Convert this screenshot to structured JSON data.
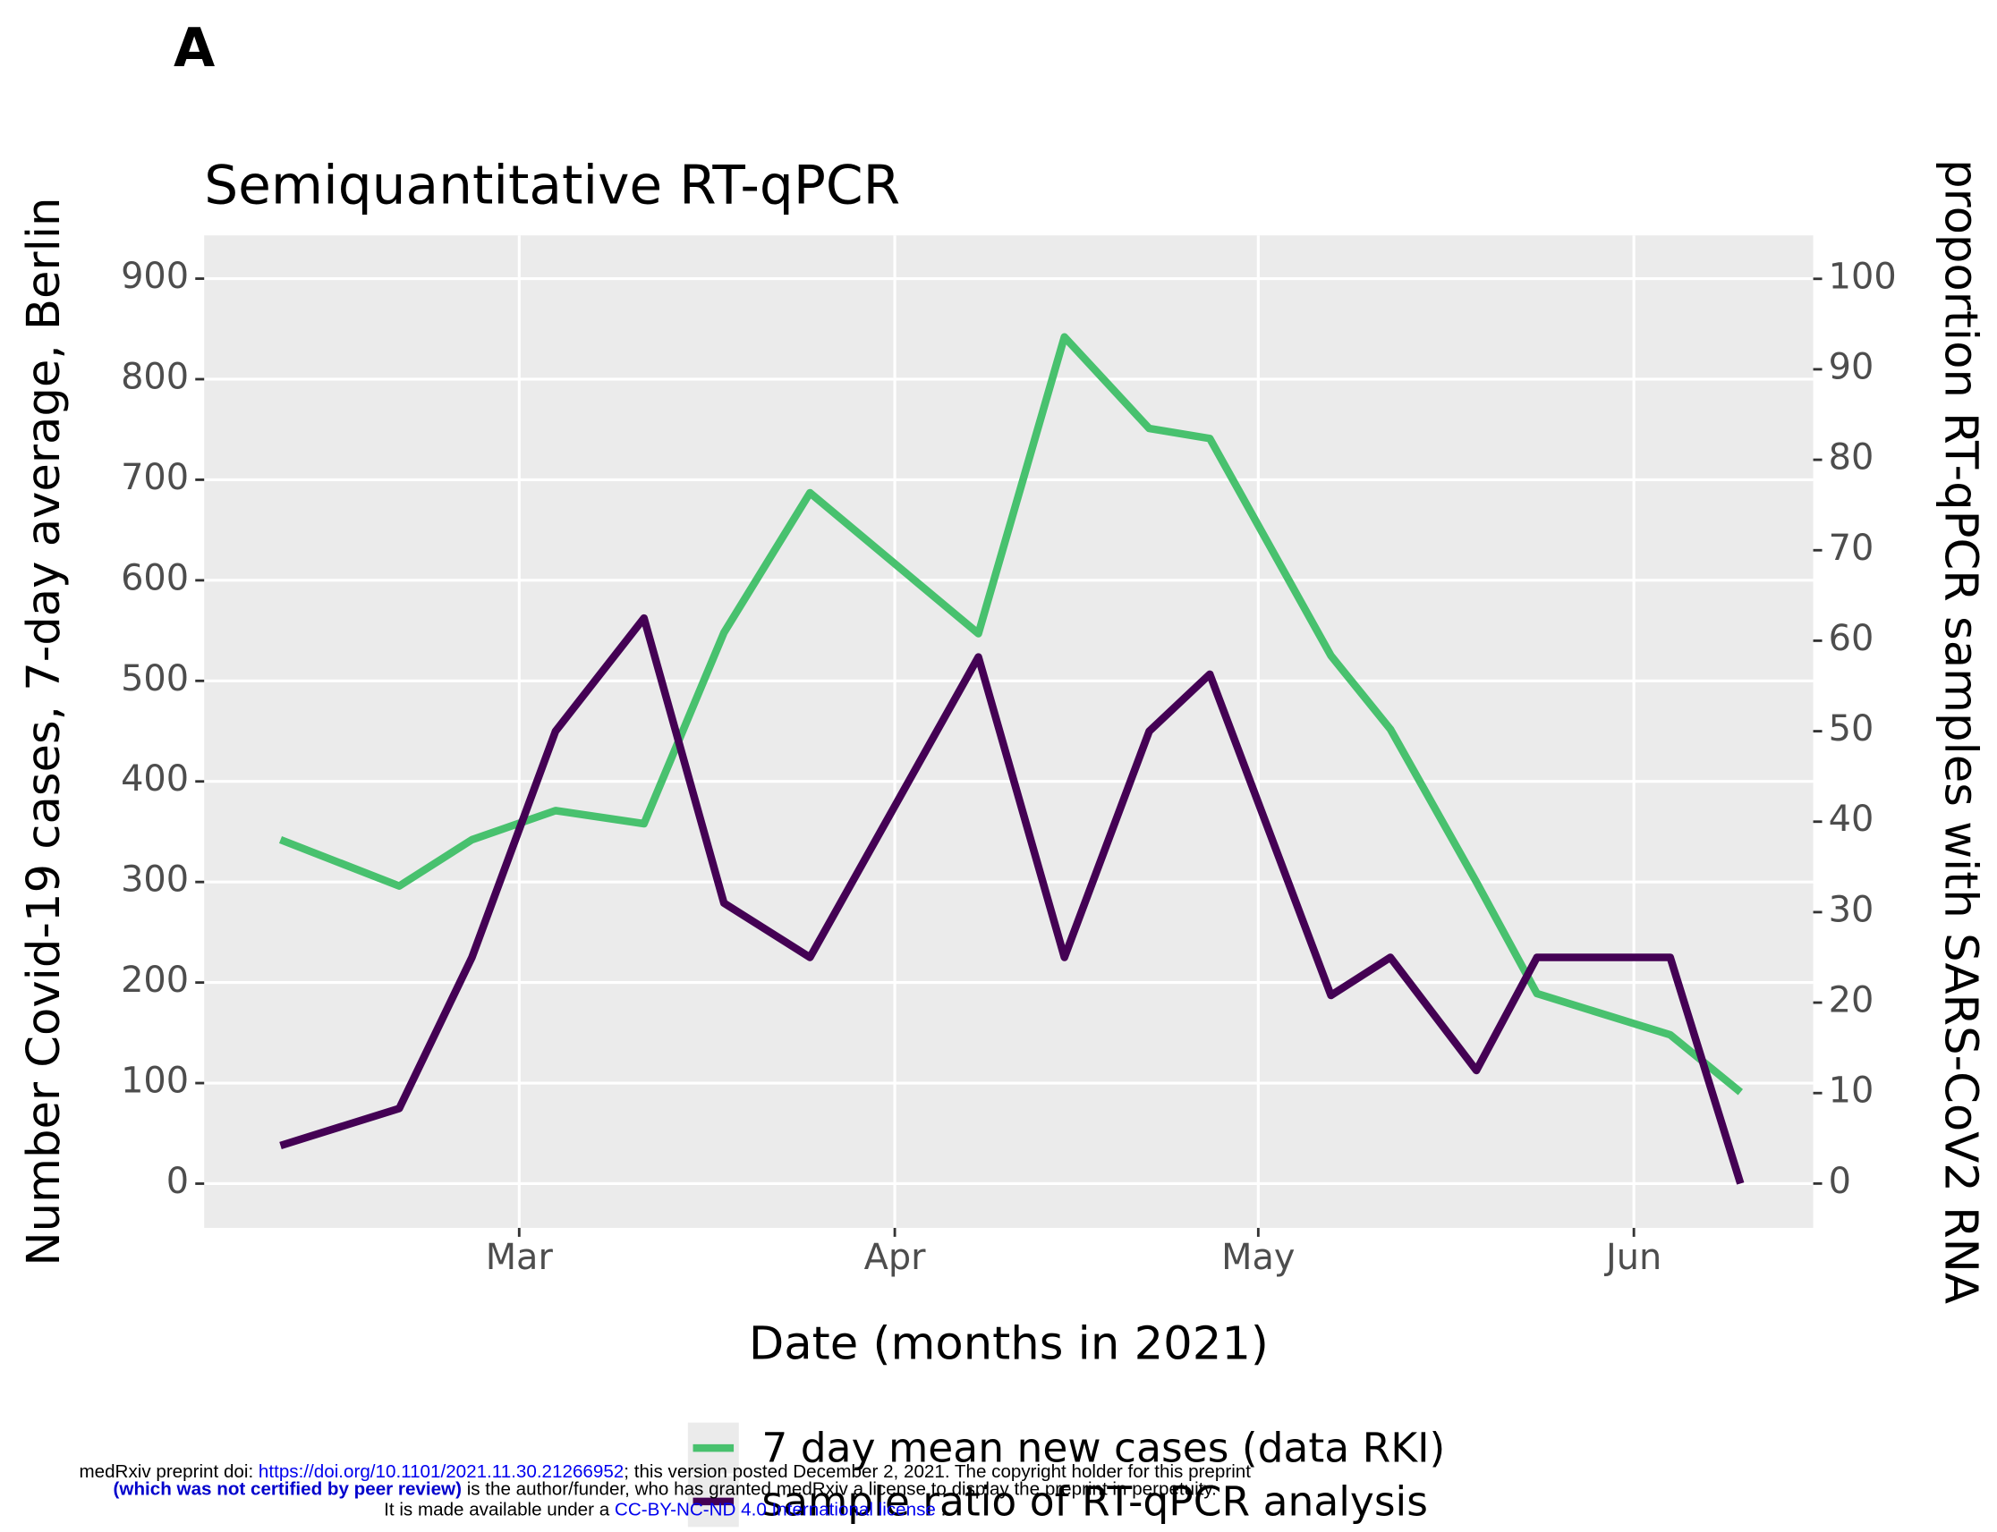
{
  "panel_label": "A",
  "chart_data": {
    "type": "line",
    "title": "Semiquantitative RT-qPCR",
    "x_label": "Date (months in 2021)",
    "y_label": "Number Covid-19 cases, 7-day average, Berlin",
    "y2_label": "proportion RT-qPCR samples with SARS-CoV2 RNA",
    "x": [
      40.3,
      50.1,
      56.1,
      63,
      70.3,
      76.9,
      84,
      97.9,
      105,
      112,
      117,
      127,
      131.9,
      139,
      144,
      155,
      160.8
    ],
    "xlim": [
      34,
      166.8
    ],
    "xticks": [
      {
        "value": 60,
        "label": "Mar"
      },
      {
        "value": 91,
        "label": "Apr"
      },
      {
        "value": 121,
        "label": "May"
      },
      {
        "value": 152,
        "label": "Jun"
      }
    ],
    "ylim": [
      -44,
      943
    ],
    "yticks": [
      0,
      100,
      200,
      300,
      400,
      500,
      600,
      700,
      800,
      900
    ],
    "y2lim": [
      -4.9,
      104.8
    ],
    "y2ticks": [
      0,
      10,
      20,
      30,
      40,
      50,
      60,
      70,
      80,
      90,
      100
    ],
    "grid": true,
    "legend": "bottom",
    "series": [
      {
        "name": "7 day mean new cases (data RKI)",
        "color": "#48c16e",
        "axis": "y",
        "values": [
          342,
          296,
          342,
          371,
          358,
          548,
          687,
          547,
          842,
          751,
          741,
          525,
          452,
          300,
          189,
          148,
          91
        ]
      },
      {
        "name": "sample ratio of RT-qPCR analysis",
        "color": "#440154",
        "axis": "y2",
        "values": [
          4.2,
          8.3,
          25,
          50,
          62.5,
          31,
          25,
          58.2,
          25,
          50,
          56.3,
          20.8,
          25,
          12.5,
          25,
          25,
          0
        ]
      }
    ]
  },
  "footer": {
    "line1": [
      "medRxiv preprint doi: ",
      "https://doi.org/10.1101/2021.11.30.21266952",
      "; this version posted December 2, 2021. The copyright holder for this preprint"
    ],
    "line2": [
      "(which was not certified by peer review)",
      " is the author/funder, who has granted medRxiv a license to display the preprint in perpetuity."
    ],
    "line3": [
      "It is made available under a ",
      "CC-BY-NC-ND 4.0 International license",
      " ."
    ]
  }
}
